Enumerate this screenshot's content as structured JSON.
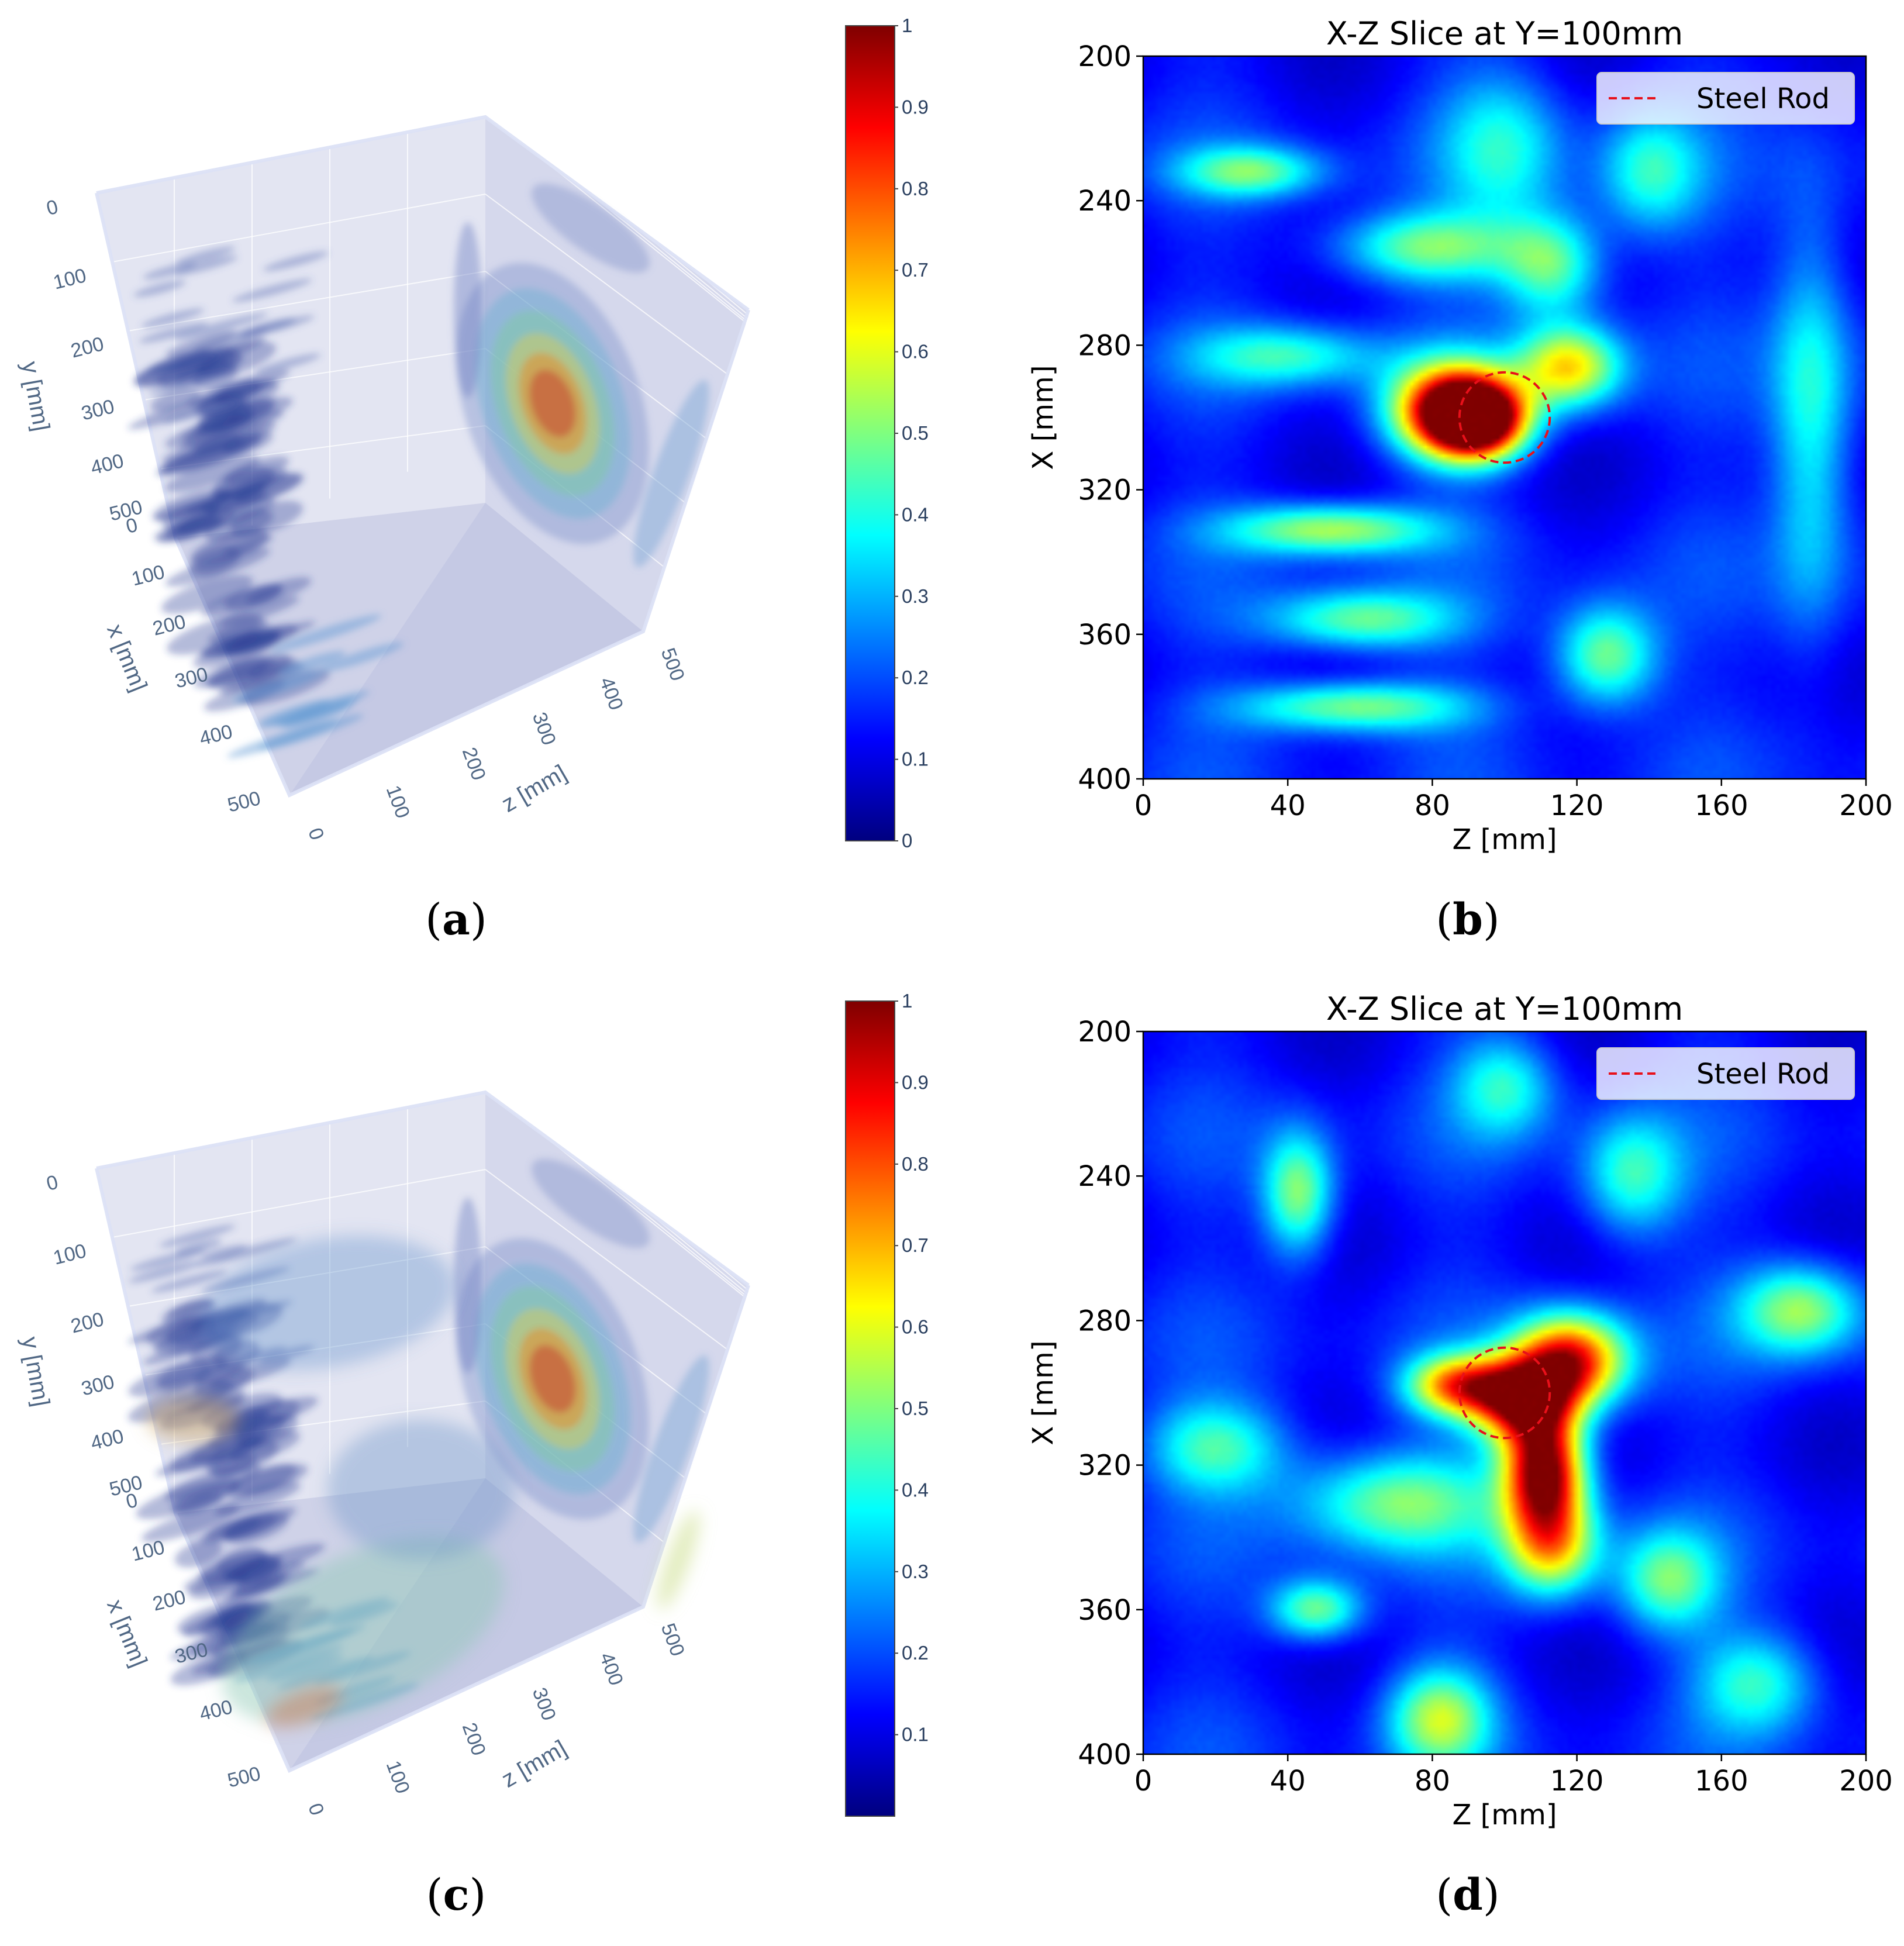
{
  "colorscale": [
    "#00007f",
    "#0000ff",
    "#007fff",
    "#00ffff",
    "#7fff7f",
    "#ffff00",
    "#ff7f00",
    "#ff0000",
    "#7f0000"
  ],
  "captions": [
    {
      "label": "a"
    },
    {
      "label": "b"
    },
    {
      "label": "c"
    },
    {
      "label": "d"
    }
  ],
  "chart_data": [
    {
      "type": "other",
      "panel": "a",
      "kind": "3d-isosurface-volume",
      "axes": {
        "y": {
          "label": "y [mm]",
          "ticks": [
            "0",
            "100",
            "200",
            "300",
            "400",
            "500"
          ]
        },
        "x": {
          "label": "x [mm]",
          "ticks": [
            "0",
            "100",
            "200",
            "300",
            "400",
            "500"
          ]
        },
        "z": {
          "label": "z [mm]",
          "ticks": [
            "0",
            "100",
            "200",
            "300",
            "400",
            "500"
          ]
        }
      },
      "colorbar": {
        "ticks": [
          "0",
          "0.1",
          "0.2",
          "0.3",
          "0.4",
          "0.5",
          "0.6",
          "0.7",
          "0.8",
          "0.9",
          "1"
        ],
        "range": [
          0,
          1
        ]
      }
    },
    {
      "type": "heatmap",
      "panel": "b",
      "title": "X-Z Slice at Y=100mm",
      "xlabel": "Z [mm]",
      "ylabel": "X [mm]",
      "xticks": [
        "0",
        "40",
        "80",
        "120",
        "160",
        "200"
      ],
      "yticks": [
        "200",
        "240",
        "280",
        "320",
        "360",
        "400"
      ],
      "xlim": [
        0,
        200
      ],
      "ylim": [
        400,
        200
      ],
      "legend": {
        "label": "Steel Rod",
        "placement": "top-right"
      },
      "marker_circle": {
        "z": 100,
        "x": 300,
        "radius_mm": 12.5
      },
      "blobs": [
        {
          "z": 86,
          "x": 298,
          "rz": 12,
          "rx": 9,
          "v": 0.93
        },
        {
          "z": 93,
          "x": 301,
          "rz": 9,
          "rx": 7,
          "v": 0.75
        },
        {
          "z": 118,
          "x": 286,
          "rz": 10,
          "rx": 8,
          "v": 0.55
        },
        {
          "z": 52,
          "x": 331,
          "rz": 20,
          "rx": 5,
          "v": 0.45
        },
        {
          "z": 58,
          "x": 380,
          "rz": 22,
          "rx": 5,
          "v": 0.42
        },
        {
          "z": 60,
          "x": 356,
          "rz": 18,
          "rx": 6,
          "v": 0.38
        },
        {
          "z": 30,
          "x": 232,
          "rz": 14,
          "rx": 5,
          "v": 0.35
        },
        {
          "z": 78,
          "x": 253,
          "rz": 18,
          "rx": 7,
          "v": 0.38
        },
        {
          "z": 113,
          "x": 258,
          "rz": 10,
          "rx": 10,
          "v": 0.38
        },
        {
          "z": 128,
          "x": 366,
          "rz": 10,
          "rx": 10,
          "v": 0.42
        },
        {
          "z": 40,
          "x": 283,
          "rz": 18,
          "rx": 6,
          "v": 0.3
        },
        {
          "z": 185,
          "x": 300,
          "rz": 8,
          "rx": 40,
          "v": 0.3
        },
        {
          "z": 140,
          "x": 232,
          "rz": 10,
          "rx": 12,
          "v": 0.28
        },
        {
          "z": 100,
          "x": 225,
          "rz": 12,
          "rx": 15,
          "v": 0.25
        }
      ]
    },
    {
      "type": "other",
      "panel": "c",
      "kind": "3d-isosurface-volume",
      "axes": {
        "y": {
          "label": "y [mm]",
          "ticks": [
            "0",
            "100",
            "200",
            "300",
            "400",
            "500"
          ]
        },
        "x": {
          "label": "x [mm]",
          "ticks": [
            "0",
            "100",
            "200",
            "300",
            "400",
            "500"
          ]
        },
        "z": {
          "label": "z [mm]",
          "ticks": [
            "0",
            "100",
            "200",
            "300",
            "400",
            "500"
          ]
        }
      },
      "colorbar": {
        "ticks": [
          "0.1",
          "0.2",
          "0.3",
          "0.4",
          "0.5",
          "0.6",
          "0.7",
          "0.8",
          "0.9",
          "1"
        ],
        "range": [
          0,
          1
        ]
      }
    },
    {
      "type": "heatmap",
      "panel": "d",
      "title": "X-Z Slice at Y=100mm",
      "xlabel": "Z [mm]",
      "ylabel": "X [mm]",
      "xticks": [
        "0",
        "40",
        "80",
        "120",
        "160",
        "200"
      ],
      "yticks": [
        "200",
        "240",
        "280",
        "320",
        "360",
        "400"
      ],
      "xlim": [
        0,
        200
      ],
      "ylim": [
        400,
        200
      ],
      "legend": {
        "label": "Steel Rod",
        "placement": "top-right"
      },
      "marker_circle": {
        "z": 100,
        "x": 300,
        "radius_mm": 12.5
      },
      "blobs": [
        {
          "z": 111,
          "x": 321,
          "rz": 8,
          "rx": 11,
          "v": 0.93
        },
        {
          "z": 118,
          "x": 291,
          "rz": 11,
          "rx": 9,
          "v": 0.8
        },
        {
          "z": 105,
          "x": 302,
          "rz": 10,
          "rx": 8,
          "v": 0.78
        },
        {
          "z": 87,
          "x": 298,
          "rz": 10,
          "rx": 6,
          "v": 0.62
        },
        {
          "z": 113,
          "x": 342,
          "rz": 9,
          "rx": 10,
          "v": 0.55
        },
        {
          "z": 182,
          "x": 277,
          "rz": 12,
          "rx": 9,
          "v": 0.42
        },
        {
          "z": 70,
          "x": 330,
          "rz": 20,
          "rx": 10,
          "v": 0.38
        },
        {
          "z": 43,
          "x": 245,
          "rz": 7,
          "rx": 12,
          "v": 0.42
        },
        {
          "z": 48,
          "x": 360,
          "rz": 9,
          "rx": 6,
          "v": 0.4
        },
        {
          "z": 82,
          "x": 390,
          "rz": 10,
          "rx": 10,
          "v": 0.42
        },
        {
          "z": 145,
          "x": 352,
          "rz": 10,
          "rx": 10,
          "v": 0.35
        },
        {
          "z": 135,
          "x": 240,
          "rz": 10,
          "rx": 12,
          "v": 0.32
        },
        {
          "z": 20,
          "x": 315,
          "rz": 14,
          "rx": 9,
          "v": 0.32
        },
        {
          "z": 170,
          "x": 380,
          "rz": 12,
          "rx": 10,
          "v": 0.3
        },
        {
          "z": 100,
          "x": 215,
          "rz": 10,
          "rx": 10,
          "v": 0.28
        }
      ]
    }
  ]
}
